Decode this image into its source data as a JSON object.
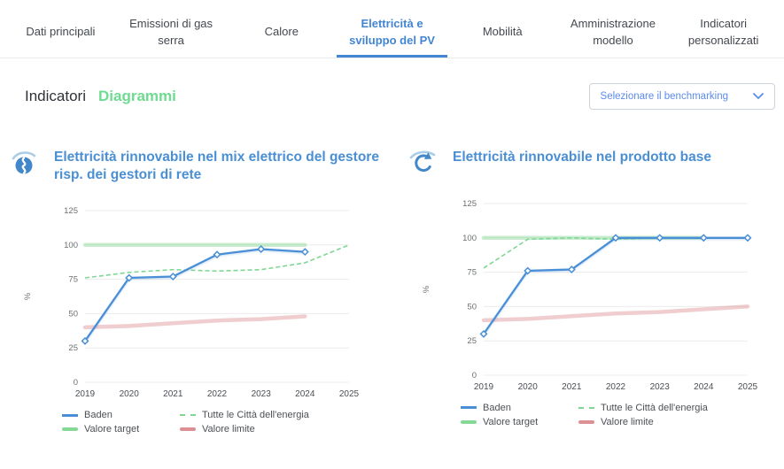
{
  "tabs": [
    {
      "label": "Dati principali",
      "active": false
    },
    {
      "label": "Emissioni di gas serra",
      "active": false
    },
    {
      "label": "Calore",
      "active": false
    },
    {
      "label": "Elettricità e sviluppo del PV",
      "active": true
    },
    {
      "label": "Mobilità",
      "active": false
    },
    {
      "label": "Amministrazione modello",
      "active": false
    },
    {
      "label": "Indicatori personalizzati",
      "active": false
    }
  ],
  "view_toggle": {
    "indicatori": "Indicatori",
    "diagrammi": "Diagrammi",
    "selected": "Diagrammi"
  },
  "benchmark_select": {
    "placeholder": "Selezionare il benchmarking",
    "icon": "chevron-down-icon"
  },
  "colors": {
    "active_tab_blue": "#4285d3",
    "title_blue": "#4a8fd3",
    "toggle_green": "#6fdb91",
    "line_blue": "#4a8fd6",
    "dashed_green": "#7fd794",
    "target_green": "#85d895",
    "limit_pink": "#dd9094",
    "grid": "#ececec"
  },
  "chart_data": [
    {
      "type": "line",
      "title": "Elettricità rinnovabile nel mix elettrico del gestore risp. dei gestori di rete",
      "icon": "renewable-mix-icon",
      "xlabel": "",
      "ylabel": "%",
      "ylim": [
        0,
        125
      ],
      "yticks": [
        0,
        25,
        50,
        75,
        100,
        125
      ],
      "x": [
        2019,
        2020,
        2021,
        2022,
        2023,
        2024,
        2025
      ],
      "grid": "horizontal",
      "legend_position": "bottom",
      "series": [
        {
          "name": "Baden",
          "color": "#4a8fd6",
          "style": "solid-marker",
          "values": [
            30,
            76,
            77,
            93,
            97,
            95,
            null
          ]
        },
        {
          "name": "Tutte le Città dell'energia",
          "color": "#7fd794",
          "style": "dashed",
          "values": [
            76,
            80,
            82,
            81,
            82,
            87,
            100
          ]
        },
        {
          "name": "Valore target",
          "color": "#85d895",
          "style": "thick",
          "values": [
            100,
            100,
            100,
            100,
            100,
            100,
            null
          ]
        },
        {
          "name": "Valore limite",
          "color": "#dd9094",
          "style": "thick",
          "values": [
            40,
            41,
            43,
            45,
            46,
            48,
            null
          ]
        }
      ]
    },
    {
      "type": "line",
      "title": "Elettricità rinnovabile nel prodotto base",
      "icon": "renewable-product-icon",
      "xlabel": "",
      "ylabel": "%",
      "ylim": [
        0,
        125
      ],
      "yticks": [
        0,
        25,
        50,
        75,
        100,
        125
      ],
      "x": [
        2019,
        2020,
        2021,
        2022,
        2023,
        2024,
        2025
      ],
      "grid": "horizontal",
      "legend_position": "bottom",
      "series": [
        {
          "name": "Baden",
          "color": "#4a8fd6",
          "style": "solid-marker",
          "values": [
            30,
            76,
            77,
            100,
            100,
            100,
            100
          ]
        },
        {
          "name": "Tutte le Città dell'energia",
          "color": "#7fd794",
          "style": "dashed",
          "values": [
            78,
            99,
            100,
            99,
            100,
            100,
            100
          ]
        },
        {
          "name": "Valore target",
          "color": "#85d895",
          "style": "thick",
          "values": [
            100,
            100,
            100,
            100,
            100,
            100,
            null
          ]
        },
        {
          "name": "Valore limite",
          "color": "#dd9094",
          "style": "thick",
          "values": [
            40,
            41,
            43,
            45,
            46,
            48,
            50
          ]
        }
      ]
    }
  ]
}
